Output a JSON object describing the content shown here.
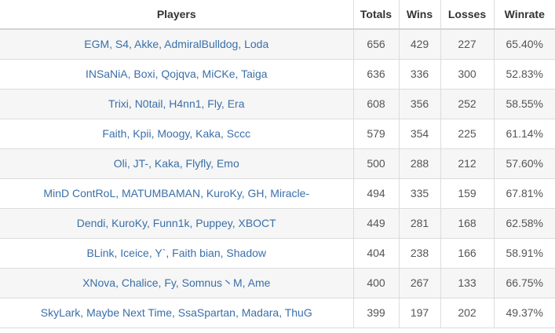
{
  "table": {
    "headers": {
      "players": "Players",
      "totals": "Totals",
      "wins": "Wins",
      "losses": "Losses",
      "winrate": "Winrate"
    },
    "rows": [
      {
        "players": "EGM, S4, Akke, AdmiralBulldog, Loda",
        "totals": "656",
        "wins": "429",
        "losses": "227",
        "winrate": "65.40%"
      },
      {
        "players": "INSaNiA, Boxi, Qojqva, MiCKe, Taiga",
        "totals": "636",
        "wins": "336",
        "losses": "300",
        "winrate": "52.83%"
      },
      {
        "players": "Trixi, N0tail, H4nn1, Fly, Era",
        "totals": "608",
        "wins": "356",
        "losses": "252",
        "winrate": "58.55%"
      },
      {
        "players": "Faith, Kpii, Moogy, Kaka, Sccc",
        "totals": "579",
        "wins": "354",
        "losses": "225",
        "winrate": "61.14%"
      },
      {
        "players": "Oli, JT-, Kaka, Flyfly, Emo",
        "totals": "500",
        "wins": "288",
        "losses": "212",
        "winrate": "57.60%"
      },
      {
        "players": "MinD ContRoL, MATUMBAMAN, KuroKy, GH, Miracle-",
        "totals": "494",
        "wins": "335",
        "losses": "159",
        "winrate": "67.81%"
      },
      {
        "players": "Dendi, KuroKy, Funn1k, Puppey, XBOCT",
        "totals": "449",
        "wins": "281",
        "losses": "168",
        "winrate": "62.58%"
      },
      {
        "players": "BLink, Iceice, Y`, Faith bian, Shadow",
        "totals": "404",
        "wins": "238",
        "losses": "166",
        "winrate": "58.91%"
      },
      {
        "players": "XNova, Chalice, Fy, Somnus丶M, Ame",
        "totals": "400",
        "wins": "267",
        "losses": "133",
        "winrate": "66.75%"
      },
      {
        "players": "SkyLark, Maybe Next Time, SsaSpartan, Madara, ThuG",
        "totals": "399",
        "wins": "197",
        "losses": "202",
        "winrate": "49.37%"
      }
    ]
  }
}
